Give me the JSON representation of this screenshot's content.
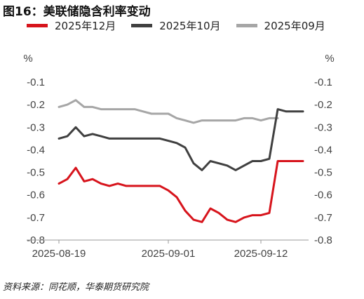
{
  "title": "图16：美联储隐含利率变动",
  "source": "资料来源：同花顺，华泰期货研究院",
  "chart_data": {
    "type": "line",
    "yunit_left": "%",
    "yunit_right": "%",
    "ylim": [
      -0.8,
      -0.1
    ],
    "yticks": [
      "-0.1",
      "-0.2",
      "-0.3",
      "-0.4",
      "-0.5",
      "-0.6",
      "-0.7",
      "-0.8"
    ],
    "xticks": [
      "2025-08-19",
      "2025-09-01",
      "2025-09-12"
    ],
    "grid": false,
    "legend_position": "top",
    "x": [
      "2025-08-19",
      "2025-08-20",
      "2025-08-21",
      "2025-08-22",
      "2025-08-23",
      "2025-08-24",
      "2025-08-25",
      "2025-08-26",
      "2025-08-27",
      "2025-08-28",
      "2025-08-29",
      "2025-08-30",
      "2025-08-31",
      "2025-09-01",
      "2025-09-02",
      "2025-09-03",
      "2025-09-04",
      "2025-09-05",
      "2025-09-06",
      "2025-09-07",
      "2025-09-08",
      "2025-09-09",
      "2025-09-10",
      "2025-09-11",
      "2025-09-12",
      "2025-09-13",
      "2025-09-14",
      "2025-09-15",
      "2025-09-16",
      "2025-09-17"
    ],
    "series": [
      {
        "name": "2025年12月",
        "color": "#d7141c",
        "values": [
          -0.55,
          -0.53,
          -0.48,
          -0.54,
          -0.53,
          -0.55,
          -0.56,
          -0.55,
          -0.56,
          -0.56,
          -0.56,
          -0.56,
          -0.56,
          -0.58,
          -0.61,
          -0.67,
          -0.71,
          -0.72,
          -0.66,
          -0.68,
          -0.71,
          -0.72,
          -0.7,
          -0.69,
          -0.69,
          -0.68,
          -0.45,
          -0.45,
          -0.45,
          -0.45
        ]
      },
      {
        "name": "2025年10月",
        "color": "#404040",
        "values": [
          -0.35,
          -0.34,
          -0.3,
          -0.34,
          -0.33,
          -0.34,
          -0.35,
          -0.35,
          -0.35,
          -0.35,
          -0.35,
          -0.35,
          -0.35,
          -0.36,
          -0.37,
          -0.39,
          -0.46,
          -0.49,
          -0.45,
          -0.46,
          -0.47,
          -0.49,
          -0.47,
          -0.45,
          -0.45,
          -0.44,
          -0.22,
          -0.23,
          -0.23,
          -0.23
        ]
      },
      {
        "name": "2025年09月",
        "color": "#a6a6a6",
        "values": [
          -0.21,
          -0.2,
          -0.18,
          -0.21,
          -0.21,
          -0.22,
          -0.22,
          -0.22,
          -0.22,
          -0.22,
          -0.23,
          -0.24,
          -0.24,
          -0.24,
          -0.26,
          -0.27,
          -0.28,
          -0.27,
          -0.27,
          -0.27,
          -0.27,
          -0.27,
          -0.26,
          -0.26,
          -0.27,
          -0.26,
          -0.26,
          null,
          null,
          null
        ]
      }
    ]
  }
}
